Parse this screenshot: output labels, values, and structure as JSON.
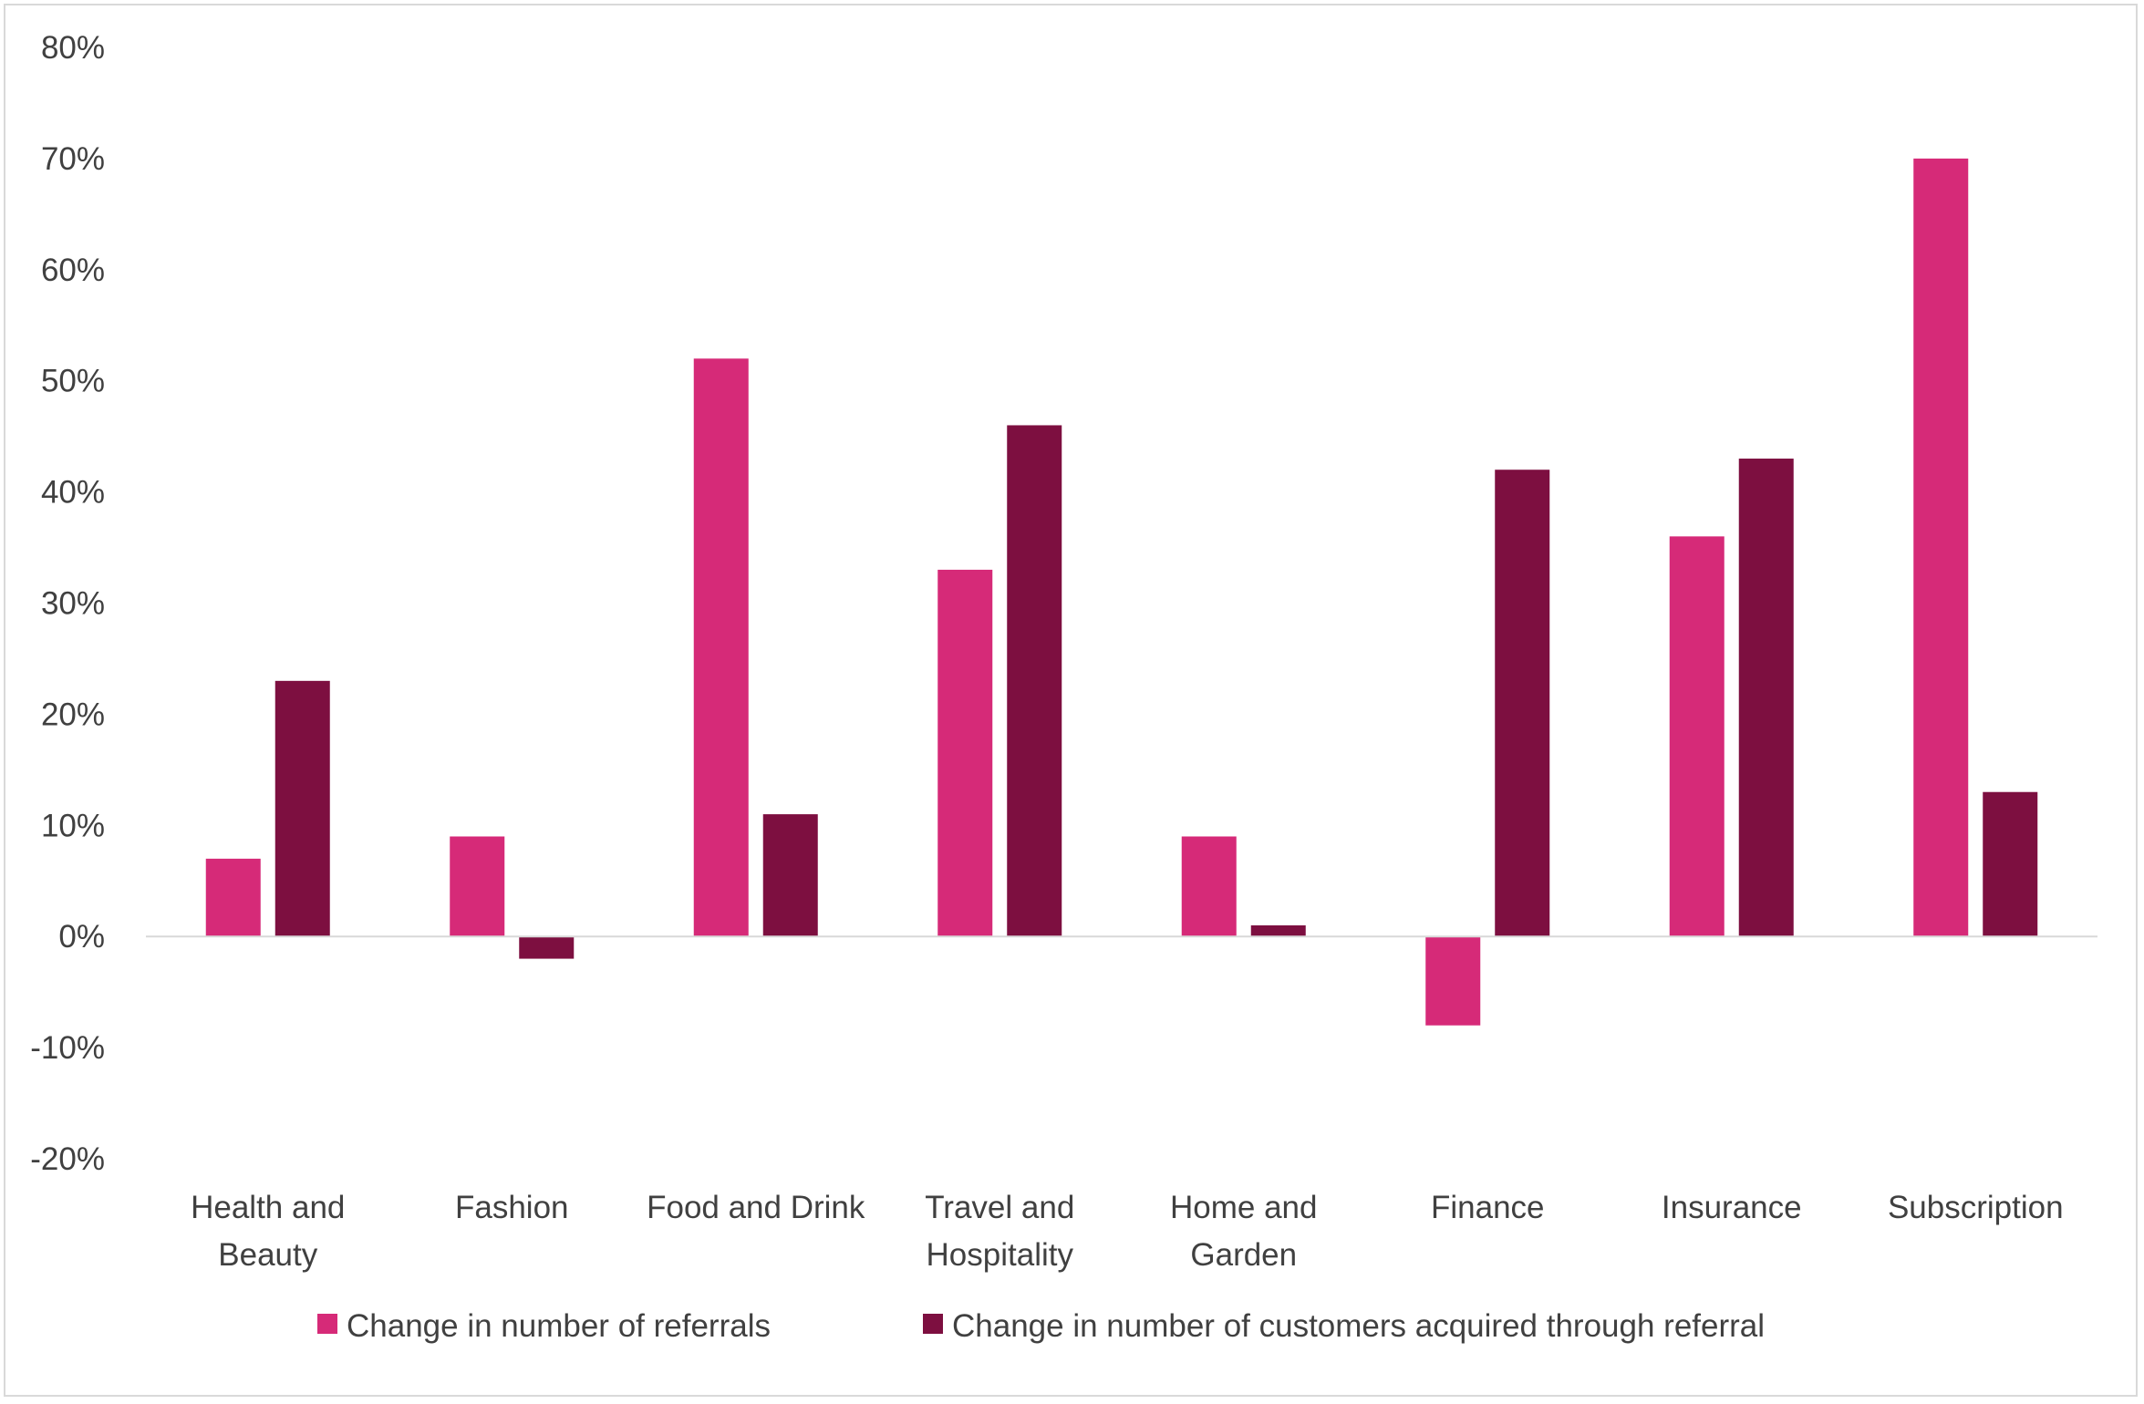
{
  "chart_data": {
    "type": "bar",
    "title": "",
    "xlabel": "",
    "ylabel": "",
    "categories": [
      [
        "Health and",
        "Beauty"
      ],
      [
        "Fashion"
      ],
      [
        "Food and Drink"
      ],
      [
        "Travel and",
        "Hospitality"
      ],
      [
        "Home and",
        "Garden"
      ],
      [
        "Finance"
      ],
      [
        "Insurance"
      ],
      [
        "Subscription"
      ]
    ],
    "series": [
      {
        "name": "Change in number of referrals",
        "color": "#d62a78",
        "values": [
          7,
          9,
          52,
          33,
          9,
          -8,
          36,
          70
        ]
      },
      {
        "name": "Change in number of customers acquired through referral",
        "color": "#7d0f40",
        "values": [
          23,
          -2,
          11,
          46,
          1,
          42,
          43,
          13
        ]
      }
    ],
    "ylim": [
      -20,
      80
    ],
    "yticks": [
      80,
      70,
      60,
      50,
      40,
      30,
      20,
      10,
      0,
      -10,
      -20
    ],
    "ytick_labels": [
      "80%",
      "70%",
      "60%",
      "50%",
      "40%",
      "30%",
      "20%",
      "10%",
      "0%",
      "-10%",
      "-20%"
    ],
    "grid": false,
    "legend_position": "bottom"
  }
}
